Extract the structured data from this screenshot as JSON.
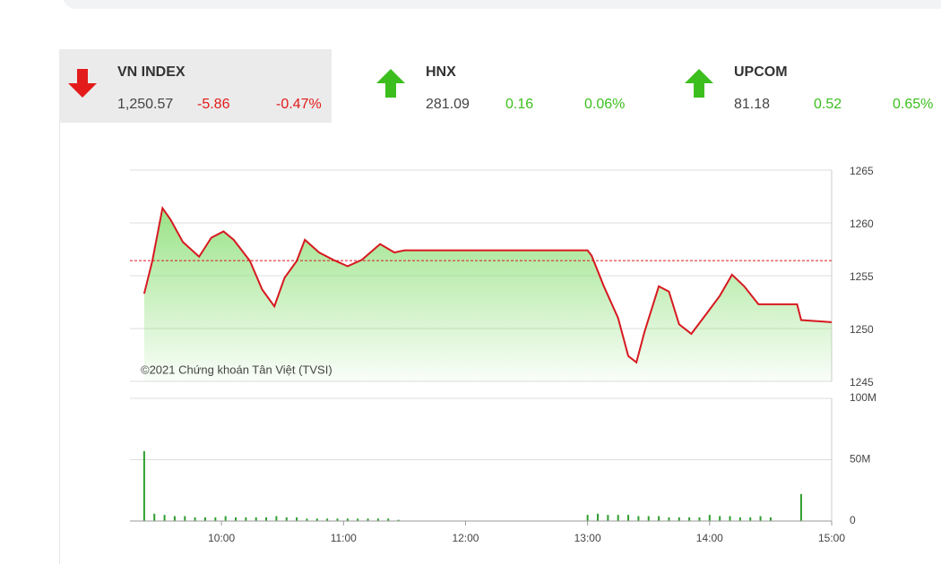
{
  "indices": [
    {
      "name": "VN INDEX",
      "value": "1,250.57",
      "change": "-5.86",
      "percent": "-0.47%",
      "color": "#e31b1b"
    },
    {
      "name": "HNX",
      "value": "281.09",
      "change": "0.16",
      "percent": "0.06%",
      "color": "#3cbf1e"
    },
    {
      "name": "UPCOM",
      "value": "81.18",
      "change": "0.52",
      "percent": "0.65%",
      "color": "#3cbf1e"
    }
  ],
  "chart_data": [
    {
      "type": "area",
      "annotation": "©2021 Chứng khoán Tân Việt (TVSI)",
      "x": [
        "09:22",
        "09:26",
        "09:31",
        "09:35",
        "09:41",
        "09:49",
        "09:55",
        "10:01",
        "10:06",
        "10:14",
        "10:20",
        "10:26",
        "10:31",
        "10:37",
        "10:41",
        "10:48",
        "10:55",
        "11:02",
        "11:09",
        "11:18",
        "11:25",
        "11:30",
        "13:00",
        "13:02",
        "13:08",
        "13:15",
        "13:20",
        "13:24",
        "13:28",
        "13:35",
        "13:40",
        "13:45",
        "13:51",
        "14:00",
        "14:05",
        "14:11",
        "14:17",
        "14:24",
        "14:30",
        "14:43",
        "14:45",
        "15:00"
      ],
      "series": [
        {
          "color": "#d71920",
          "fill": "#8fe07a",
          "values": [
            1253.3,
            1256.4,
            1261.4,
            1260.3,
            1258.2,
            1256.8,
            1258.6,
            1259.2,
            1258.4,
            1256.4,
            1253.7,
            1252.1,
            1254.8,
            1256.4,
            1258.4,
            1257.2,
            1256.5,
            1255.9,
            1256.5,
            1258.0,
            1257.2,
            1257.4,
            1257.4,
            1256.9,
            1254.0,
            1251.0,
            1247.4,
            1246.8,
            1249.7,
            1254.0,
            1253.5,
            1250.4,
            1249.5,
            1251.8,
            1253.1,
            1255.1,
            1254.0,
            1252.3,
            1252.3,
            1252.3,
            1250.8,
            1250.6
          ]
        }
      ],
      "reference_line": 1256.43,
      "xlim": [
        "09:15",
        "15:00"
      ],
      "ylim": [
        1245,
        1265
      ],
      "yticks": [
        1245,
        1250,
        1255,
        1260,
        1265
      ],
      "grid": true
    },
    {
      "type": "bar",
      "x": [
        "09:22",
        "09:27",
        "09:32",
        "09:37",
        "09:42",
        "09:47",
        "09:52",
        "09:57",
        "10:02",
        "10:07",
        "10:12",
        "10:17",
        "10:22",
        "10:27",
        "10:32",
        "10:37",
        "10:42",
        "10:47",
        "10:52",
        "10:57",
        "11:02",
        "11:07",
        "11:12",
        "11:17",
        "11:22",
        "11:27",
        "13:00",
        "13:05",
        "13:10",
        "13:15",
        "13:20",
        "13:25",
        "13:30",
        "13:35",
        "13:40",
        "13:45",
        "13:50",
        "13:55",
        "14:00",
        "14:05",
        "14:10",
        "14:15",
        "14:20",
        "14:25",
        "14:30",
        "14:45"
      ],
      "series": [
        {
          "color": "#2e9e2e",
          "values": [
            57,
            6,
            5,
            4,
            4,
            3,
            3,
            3,
            4,
            3,
            3,
            3,
            3,
            4,
            3,
            3,
            2,
            2,
            2,
            2,
            2,
            2,
            2,
            2,
            2,
            1,
            5,
            6,
            5,
            5,
            5,
            4,
            4,
            4,
            3,
            3,
            3,
            3,
            5,
            4,
            4,
            3,
            3,
            4,
            3,
            22
          ]
        }
      ],
      "xlim": [
        "09:15",
        "15:00"
      ],
      "xticks": [
        "10:00",
        "11:00",
        "12:00",
        "13:00",
        "14:00",
        "15:00"
      ],
      "ylim": [
        0,
        100
      ],
      "yticks": [
        0,
        {
          "value": 50,
          "label": "50M"
        },
        {
          "value": 100,
          "label": "100M"
        }
      ],
      "grid": true
    }
  ]
}
